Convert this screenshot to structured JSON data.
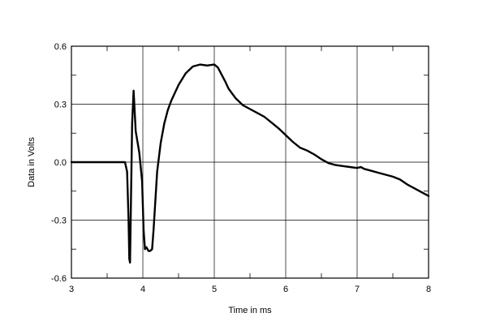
{
  "chart_data": {
    "type": "line",
    "title": "",
    "xlabel": "Time in ms",
    "ylabel": "Data in Volts",
    "xlim": [
      3,
      8
    ],
    "ylim": [
      -0.6,
      0.6
    ],
    "grid": true,
    "legend": "none",
    "line_color": "#000000",
    "x_ticks": [
      3,
      4,
      5,
      6,
      7,
      8
    ],
    "x_tick_labels": [
      "3",
      "4",
      "5",
      "6",
      "7",
      "8"
    ],
    "y_ticks": [
      -0.6,
      -0.3,
      0.0,
      0.3,
      0.6
    ],
    "y_tick_labels": [
      "-0.6",
      "-0.3",
      "0.0",
      "0.3",
      "0.6"
    ],
    "series": [
      {
        "x": [
          3.0,
          3.5,
          3.75,
          3.78,
          3.8,
          3.81,
          3.82,
          3.84,
          3.85,
          3.87,
          3.9,
          3.95,
          3.99,
          4.01,
          4.03,
          4.05,
          4.08,
          4.1,
          4.13,
          4.15,
          4.2,
          4.25,
          4.3,
          4.35,
          4.4,
          4.5,
          4.6,
          4.7,
          4.8,
          4.9,
          5.0,
          5.05,
          5.1,
          5.15,
          5.2,
          5.3,
          5.4,
          5.5,
          5.6,
          5.7,
          5.8,
          5.9,
          6.0,
          6.1,
          6.2,
          6.3,
          6.4,
          6.5,
          6.6,
          6.7,
          6.8,
          6.9,
          7.0,
          7.05,
          7.1,
          7.2,
          7.3,
          7.4,
          7.5,
          7.6,
          7.7,
          7.8,
          7.9,
          8.0
        ],
        "y": [
          0.0,
          0.0,
          0.0,
          -0.05,
          -0.3,
          -0.5,
          -0.52,
          -0.05,
          0.2,
          0.37,
          0.16,
          0.05,
          -0.1,
          -0.35,
          -0.45,
          -0.44,
          -0.46,
          -0.46,
          -0.45,
          -0.35,
          -0.05,
          0.1,
          0.2,
          0.27,
          0.32,
          0.4,
          0.46,
          0.495,
          0.505,
          0.5,
          0.505,
          0.49,
          0.455,
          0.42,
          0.38,
          0.33,
          0.295,
          0.275,
          0.255,
          0.235,
          0.205,
          0.175,
          0.14,
          0.105,
          0.075,
          0.06,
          0.04,
          0.015,
          -0.005,
          -0.015,
          -0.02,
          -0.025,
          -0.03,
          -0.025,
          -0.035,
          -0.045,
          -0.055,
          -0.065,
          -0.075,
          -0.09,
          -0.115,
          -0.135,
          -0.155,
          -0.175
        ]
      }
    ]
  }
}
